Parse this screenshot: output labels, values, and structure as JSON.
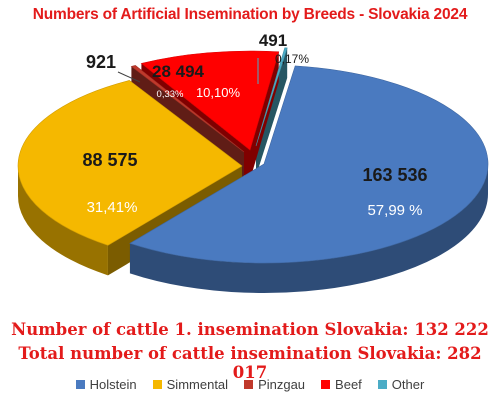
{
  "chart_data": {
    "type": "pie",
    "title": "Numbers of Artificial Insemination by Breeds - Slovakia 2024",
    "three_d": true,
    "slices": [
      {
        "name": "Holstein",
        "value": 163536,
        "value_label": "163 536",
        "pct_label": "57,99 %",
        "color": "#4a7ac0"
      },
      {
        "name": "Simmental",
        "value": 88575,
        "value_label": "88 575",
        "pct_label": "31,41%",
        "color": "#f5b800"
      },
      {
        "name": "Pinzgau",
        "value": 921,
        "value_label": "921",
        "pct_label": "0,33%",
        "color": "#c0392b"
      },
      {
        "name": "Beef",
        "value": 28494,
        "value_label": "28 494",
        "pct_label": "10,10%",
        "color": "#ff0000"
      },
      {
        "name": "Other",
        "value": 491,
        "value_label": "491",
        "pct_label": "0,17%",
        "color": "#4bacc6"
      }
    ],
    "legend_position": "bottom",
    "notes": [
      "Number of cattle 1. insemination Slovakia: 132 222",
      "Total number of cattle insemination Slovakia: 282 017"
    ]
  }
}
